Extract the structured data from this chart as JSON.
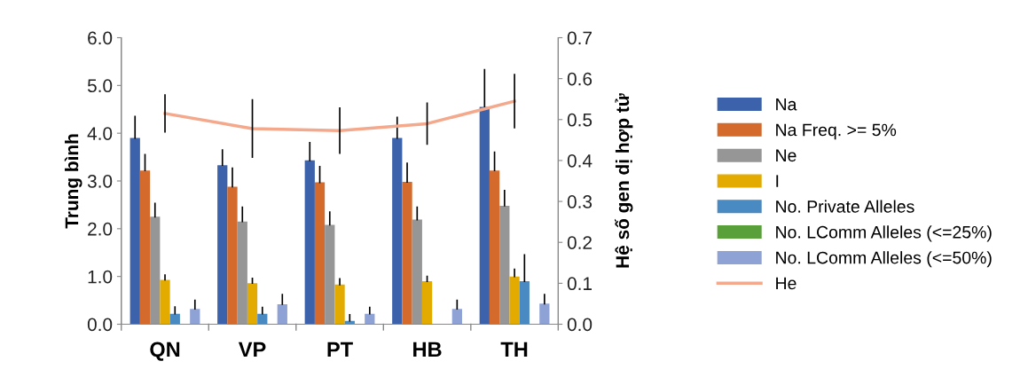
{
  "chart_data": {
    "type": "bar",
    "ylabel": "Trung bình",
    "y2label": "Hệ số gen dị hợp tử",
    "categories": [
      "QN",
      "VP",
      "PT",
      "HB",
      "TH"
    ],
    "series": [
      {
        "name": "Na",
        "color": "#3c62ab",
        "values": [
          3.9,
          3.33,
          3.43,
          3.9,
          4.55
        ],
        "errors": [
          0.45,
          0.32,
          0.37,
          0.43,
          0.78
        ]
      },
      {
        "name": "Na Freq. >= 5%",
        "color": "#d46a2b",
        "values": [
          3.22,
          2.88,
          2.97,
          2.98,
          3.22
        ],
        "errors": [
          0.33,
          0.39,
          0.33,
          0.39,
          0.38
        ]
      },
      {
        "name": "Ne",
        "color": "#969696",
        "values": [
          2.25,
          2.15,
          2.08,
          2.19,
          2.48
        ],
        "errors": [
          0.28,
          0.3,
          0.27,
          0.26,
          0.32
        ]
      },
      {
        "name": "I",
        "color": "#e3aa00",
        "values": [
          0.93,
          0.86,
          0.83,
          0.9,
          1.0
        ],
        "errors": [
          0.1,
          0.1,
          0.12,
          0.1,
          0.15
        ]
      },
      {
        "name": "No. Private Alleles",
        "color": "#4a8ac3",
        "values": [
          0.22,
          0.22,
          0.07,
          0,
          0.9
        ],
        "errors": [
          0.14,
          0.13,
          0.13,
          null,
          0.55
        ]
      },
      {
        "name": "No. LComm Alleles (<=25%)",
        "color": "#5aa03a",
        "values": [
          0,
          0,
          0,
          0,
          0
        ]
      },
      {
        "name": "No. LComm Alleles (<=50%)",
        "color": "#8fa2d6",
        "values": [
          0.32,
          0.42,
          0.22,
          0.32,
          0.43
        ],
        "errors": [
          0.18,
          0.2,
          0.13,
          0.18,
          0.19
        ]
      },
      {
        "name": "He",
        "type": "line",
        "axis": "y2",
        "color": "#f4a88c",
        "values": [
          0.515,
          0.478,
          0.473,
          0.49,
          0.545
        ],
        "errors": [
          0.045,
          0.07,
          0.055,
          0.05,
          0.065
        ]
      }
    ],
    "ylim": [
      0,
      6
    ],
    "yticks": [
      {
        "value": 0,
        "label": "0.0"
      },
      {
        "value": 1,
        "label": "1.0"
      },
      {
        "value": 2,
        "label": "2.0"
      },
      {
        "value": 3,
        "label": "3.0"
      },
      {
        "value": 4,
        "label": "4.0"
      },
      {
        "value": 5,
        "label": "5.0"
      },
      {
        "value": 6,
        "label": "6.0"
      }
    ],
    "y2lim": [
      0,
      0.7
    ],
    "y2ticks": [
      {
        "value": 0,
        "label": "0.0"
      },
      0.1,
      0.2,
      0.3,
      0.4,
      0.5,
      0.6,
      0.7
    ],
    "legend": "right",
    "grid": false
  }
}
